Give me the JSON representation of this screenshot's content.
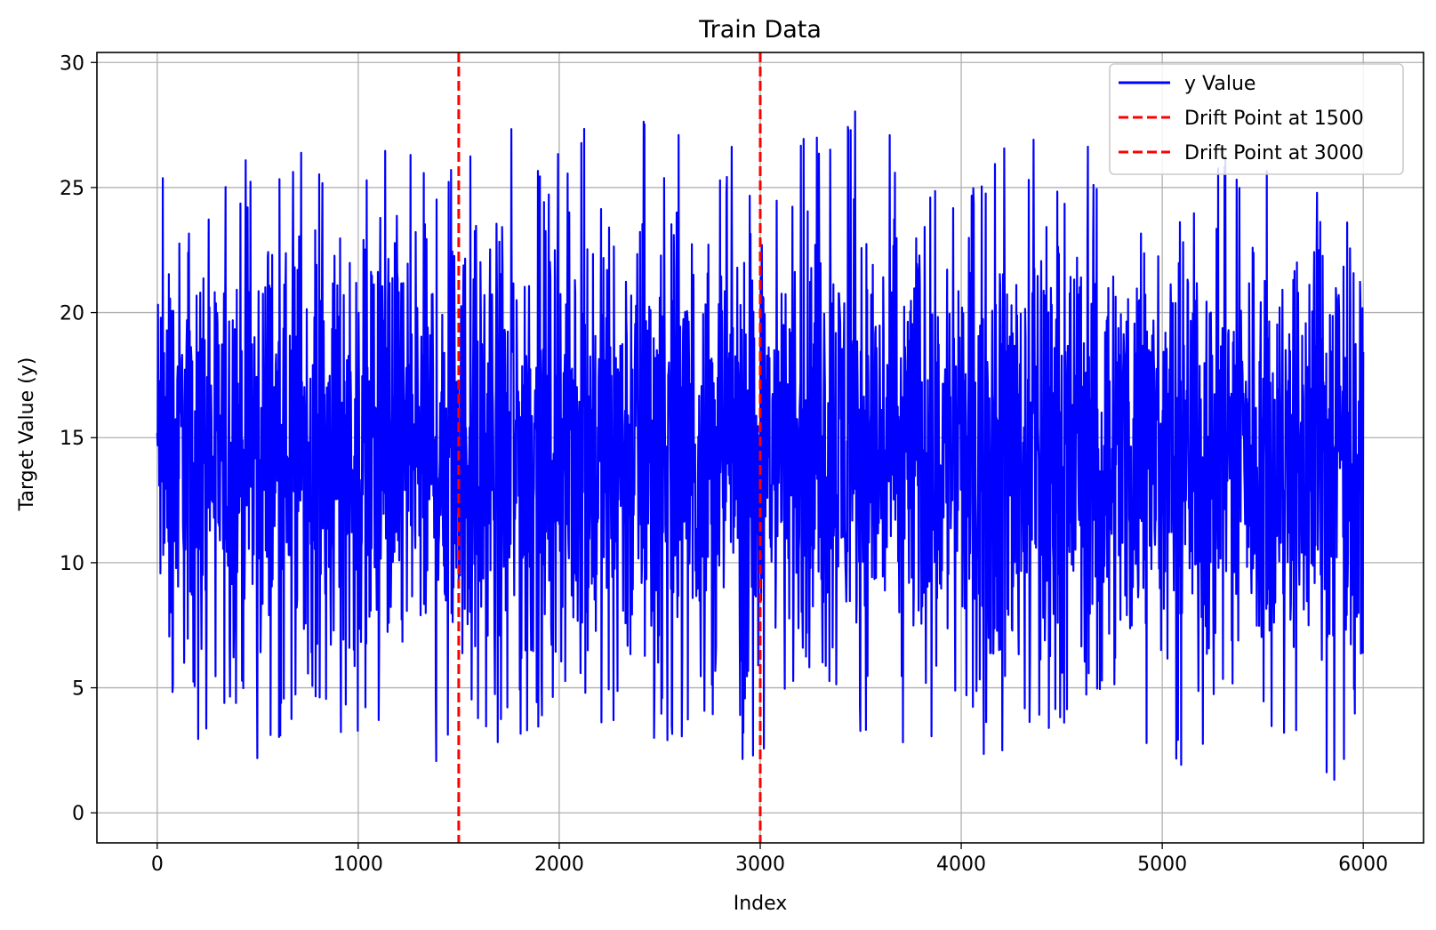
{
  "chart_data": {
    "type": "line",
    "title": "Train Data",
    "xlabel": "Index",
    "ylabel": "Target Value (y)",
    "xlim": [
      -300,
      6300
    ],
    "ylim": [
      -1.2,
      30.4
    ],
    "x_ticks": [
      0,
      1000,
      2000,
      3000,
      4000,
      5000,
      6000
    ],
    "x_tick_labels": [
      "0",
      "1000",
      "2000",
      "3000",
      "4000",
      "5000",
      "6000"
    ],
    "y_ticks": [
      0,
      5,
      10,
      15,
      20,
      25,
      30
    ],
    "y_tick_labels": [
      "0",
      "5",
      "10",
      "15",
      "20",
      "25",
      "30"
    ],
    "grid": true,
    "legend_position": "top-right",
    "colors": {
      "series": "#0000ff",
      "drift": "#ff0000",
      "grid": "#b0b0b0"
    },
    "series": [
      {
        "name": "y Value",
        "style": "solid",
        "x_range": [
          0,
          6000
        ],
        "approx_mean": 14.5,
        "approx_min": 0.2,
        "approx_max": 28.9,
        "envelope": [
          {
            "x": 0,
            "min": 4.7,
            "max": 25.1
          },
          {
            "x": 100,
            "min": 4.1,
            "max": 26.8
          },
          {
            "x": 170,
            "min": 0.2,
            "max": 23.0
          },
          {
            "x": 300,
            "min": 5.7,
            "max": 24.8
          },
          {
            "x": 360,
            "min": 1.5,
            "max": 26.2
          },
          {
            "x": 460,
            "min": 1.2,
            "max": 26.7
          },
          {
            "x": 600,
            "min": 3.0,
            "max": 26.4
          },
          {
            "x": 740,
            "min": 3.8,
            "max": 26.9
          },
          {
            "x": 1000,
            "min": 2.1,
            "max": 25.1
          },
          {
            "x": 1100,
            "min": 3.5,
            "max": 26.7
          },
          {
            "x": 1210,
            "min": 1.8,
            "max": 27.1
          },
          {
            "x": 1340,
            "min": 2.4,
            "max": 27.4
          },
          {
            "x": 1400,
            "min": 1.2,
            "max": 24.4
          },
          {
            "x": 1490,
            "min": 4.7,
            "max": 27.0
          },
          {
            "x": 1600,
            "min": 2.3,
            "max": 26.2
          },
          {
            "x": 1800,
            "min": 2.9,
            "max": 28.1
          },
          {
            "x": 1960,
            "min": 2.3,
            "max": 26.5
          },
          {
            "x": 2150,
            "min": 3.8,
            "max": 28.2
          },
          {
            "x": 2450,
            "min": 2.9,
            "max": 28.1
          },
          {
            "x": 2800,
            "min": 2.6,
            "max": 26.9
          },
          {
            "x": 2950,
            "min": 1.6,
            "max": 26.2
          },
          {
            "x": 3000,
            "min": 2.4,
            "max": 24.6
          },
          {
            "x": 3100,
            "min": 3.1,
            "max": 25.5
          },
          {
            "x": 3200,
            "min": 4.5,
            "max": 27.1
          },
          {
            "x": 3490,
            "min": 3.3,
            "max": 28.3
          },
          {
            "x": 3800,
            "min": 2.4,
            "max": 25.9
          },
          {
            "x": 4000,
            "min": 3.8,
            "max": 25.2
          },
          {
            "x": 4120,
            "min": 1.9,
            "max": 25.6
          },
          {
            "x": 4230,
            "min": 1.5,
            "max": 28.6
          },
          {
            "x": 4500,
            "min": 3.2,
            "max": 25.6
          },
          {
            "x": 4700,
            "min": 4.1,
            "max": 28.9
          },
          {
            "x": 4750,
            "min": 2.8,
            "max": 26.0
          },
          {
            "x": 5000,
            "min": 2.7,
            "max": 22.0
          },
          {
            "x": 5120,
            "min": 1.5,
            "max": 24.2
          },
          {
            "x": 5300,
            "min": 4.1,
            "max": 26.5
          },
          {
            "x": 5450,
            "min": 3.6,
            "max": 26.2
          },
          {
            "x": 5700,
            "min": 1.7,
            "max": 25.1
          },
          {
            "x": 5900,
            "min": 1.0,
            "max": 24.9
          },
          {
            "x": 6000,
            "min": 5.6,
            "max": 22.3
          }
        ]
      }
    ],
    "vertical_lines": [
      {
        "name": "Drift Point at 1500",
        "x": 1500,
        "style": "dashed"
      },
      {
        "name": "Drift Point at 3000",
        "x": 3000,
        "style": "dashed"
      }
    ]
  }
}
